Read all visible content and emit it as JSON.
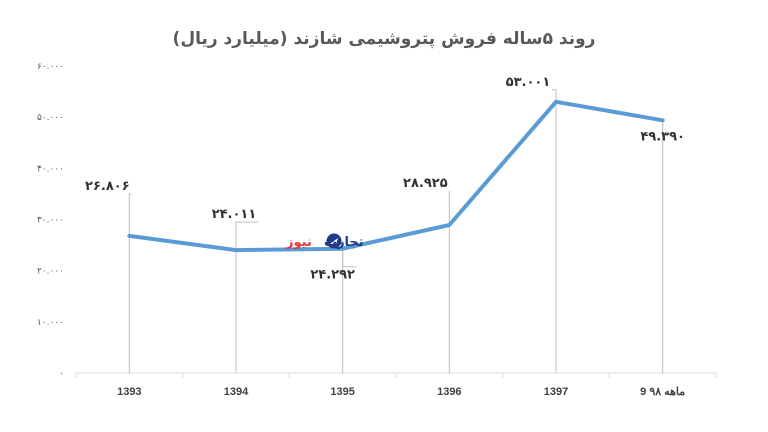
{
  "chart_data": {
    "type": "line",
    "title": "روند ۵ساله فروش پتروشیمی شازند (میلیارد ریال)",
    "categories": [
      "1393",
      "1394",
      "1395",
      "1396",
      "1397",
      "9 ماهه ۹۸"
    ],
    "values": [
      26806,
      24011,
      24292,
      28925,
      53001,
      49390
    ],
    "data_labels": [
      "۲۶.۸۰۶",
      "۲۴.۰۱۱",
      "۲۴.۲۹۲",
      "۲۸.۹۲۵",
      "۵۳.۰۰۱",
      "۴۹.۳۹۰"
    ],
    "y_tick_labels": [
      "۰",
      "۱۰.۰۰۰",
      "۲۰.۰۰۰",
      "۳۰.۰۰۰",
      "۴۰.۰۰۰",
      "۵۰.۰۰۰",
      "۶۰.۰۰۰"
    ],
    "y_ticks": [
      0,
      10000,
      20000,
      30000,
      40000,
      50000,
      60000
    ],
    "ylim": [
      0,
      60000
    ],
    "xlabel": "",
    "ylabel": "",
    "grid": false,
    "line_color": "#5b9bd5",
    "leader_color": "#bfbfbf"
  },
  "watermark": {
    "text_part1": "تجارت",
    "text_part2": "نیوز",
    "color_part1": "#1f3c88",
    "color_part2": "#e53935"
  }
}
